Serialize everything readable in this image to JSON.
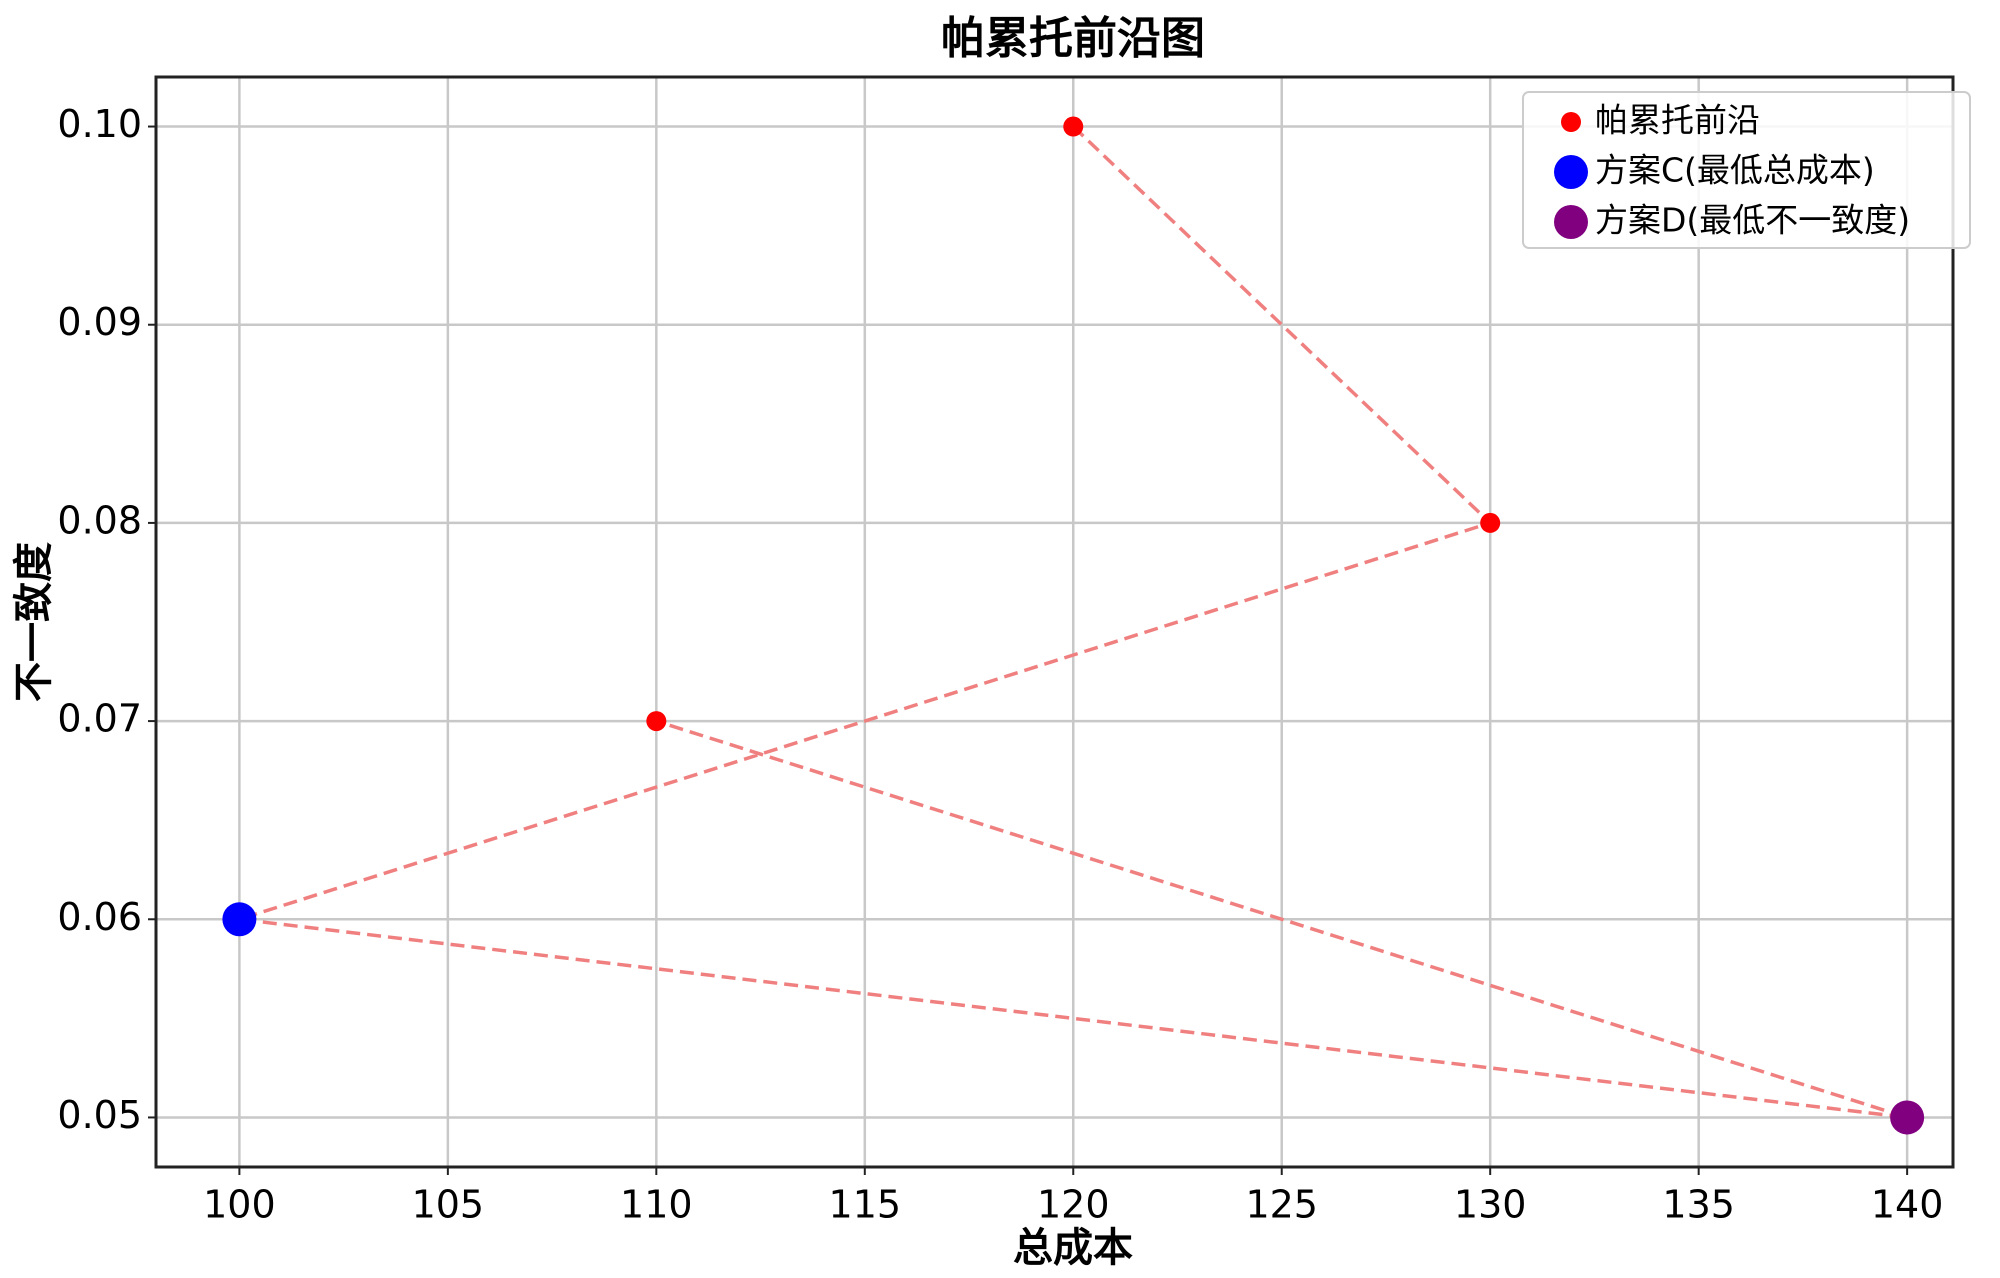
{
  "chart_data": {
    "type": "scatter",
    "title": "帕累托前沿图",
    "x_label": "总成本",
    "y_label": "不一致度",
    "xlim": [
      98,
      141.1
    ],
    "ylim": [
      0.0475,
      0.1025
    ],
    "xticks": [
      100,
      105,
      110,
      115,
      120,
      125,
      130,
      135,
      140
    ],
    "yticks": [
      0.05,
      0.06,
      0.07,
      0.08,
      0.09,
      {
        "value": 0.1,
        "label": "0.10"
      }
    ],
    "grid": true,
    "legend": "upper right",
    "series": [
      {
        "name": "帕累托前沿",
        "color": "#ff0000",
        "line_color": "#f08080",
        "linestyle": "dashed",
        "x": [
          120,
          130,
          100,
          140,
          110
        ],
        "values": [
          0.1,
          0.08,
          0.06,
          0.05,
          0.07
        ]
      },
      {
        "name": "方案C(最低总成本)",
        "color": "#0000ff",
        "x": [
          100
        ],
        "values": [
          0.06
        ]
      },
      {
        "name": "方案D(最低不一致度)",
        "color": "#800080",
        "x": [
          140
        ],
        "values": [
          0.05
        ]
      }
    ]
  }
}
